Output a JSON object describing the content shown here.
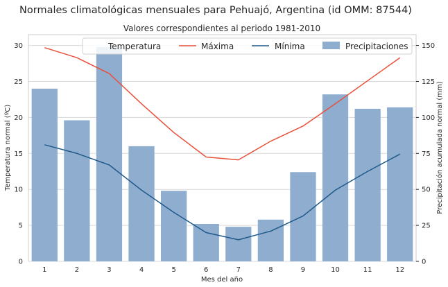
{
  "chart_data": {
    "type": "bar",
    "title": "Normales climatológicas mensuales para Pehuajó, Argentina (id OMM: 87544)",
    "subtitle": "Valores correspondientes al periodo 1981-2010",
    "xlabel": "Mes del año",
    "ylabel_left": "Temperatura normal (ºC)",
    "ylabel_right": "Precipitación acumulada normal (mm)",
    "categories": [
      "1",
      "2",
      "3",
      "4",
      "5",
      "6",
      "7",
      "8",
      "9",
      "10",
      "11",
      "12"
    ],
    "ylim_left": [
      0,
      31.5
    ],
    "ylim_right": [
      0,
      157.5
    ],
    "yticks_left": [
      0,
      5,
      10,
      15,
      20,
      25,
      30
    ],
    "yticks_right": [
      0,
      25,
      50,
      75,
      100,
      125,
      150
    ],
    "grid": true,
    "legend": {
      "placement": "top-right",
      "title": "Temperatura",
      "entries": [
        "Máxima",
        "Mínima",
        "Precipitaciones"
      ]
    },
    "series": [
      {
        "name": "Precipitaciones",
        "type": "bar",
        "axis": "right",
        "color": "#8fadcf",
        "values": [
          120,
          98,
          149,
          80,
          49,
          26,
          24,
          29,
          62,
          116,
          106,
          107
        ]
      },
      {
        "name": "Máxima",
        "type": "line",
        "axis": "left",
        "color": "#e8503a",
        "values": [
          29.7,
          28.3,
          26.1,
          21.9,
          17.9,
          14.5,
          14.1,
          16.7,
          18.8,
          21.9,
          25.1,
          28.3
        ]
      },
      {
        "name": "Mínima",
        "type": "line",
        "axis": "left",
        "color": "#1f5a8a",
        "values": [
          16.2,
          15.0,
          13.4,
          9.9,
          6.8,
          4.0,
          3.0,
          4.2,
          6.3,
          9.9,
          12.5,
          14.9
        ]
      }
    ]
  }
}
